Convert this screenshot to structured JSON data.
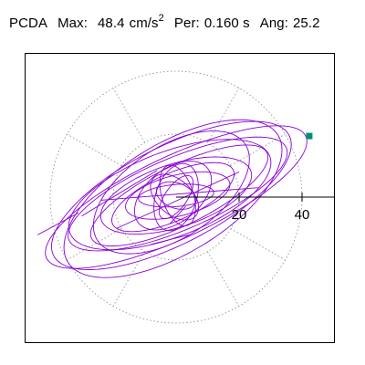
{
  "title": {
    "name": "PCDA",
    "max_label": "Max:",
    "max_value": "48.4",
    "max_unit": "cm/s",
    "max_unit_exp": "2",
    "per_label": "Per:",
    "per_value": "0.160 s",
    "ang_label": "Ang:",
    "ang_value": "25.2"
  },
  "chart_data": {
    "type": "scatter",
    "subtype": "polar orbit",
    "title": "PCDA Max: 48.4 cm/s2 Per: 0.160 s Ang: 25.2",
    "max_value": 48.4,
    "max_unit": "cm/s2",
    "period_s": 0.16,
    "angle_deg": 25.2,
    "radial_ticks": [
      20,
      40
    ],
    "tick_labels": [
      "20",
      "40"
    ],
    "radial_grid": [
      20,
      40
    ],
    "angular_grid_deg": [
      30,
      60,
      120,
      150,
      210,
      240,
      300,
      330
    ],
    "radial_limit": 48.4,
    "grid": true,
    "max_marker": {
      "x": 42.3,
      "y": 19.4
    },
    "trace": {
      "color": "#8a00d4",
      "loops": [
        {
          "a": 45.5,
          "b": 13.0,
          "rot_deg": 25.2,
          "cx": 0.0,
          "cy": 0.0,
          "phase_deg": 0
        },
        {
          "a": 42.0,
          "b": 15.5,
          "rot_deg": 27.0,
          "cx": -1.5,
          "cy": 0.5,
          "phase_deg": 0
        },
        {
          "a": 39.0,
          "b": 17.5,
          "rot_deg": 31.0,
          "cx": -1.0,
          "cy": -0.5,
          "phase_deg": 0
        },
        {
          "a": 37.5,
          "b": 11.5,
          "rot_deg": 23.0,
          "cx": 0.5,
          "cy": 1.0,
          "phase_deg": 0
        },
        {
          "a": 34.0,
          "b": 13.5,
          "rot_deg": 21.0,
          "cx": -2.0,
          "cy": 0.8,
          "phase_deg": 0
        },
        {
          "a": 31.0,
          "b": 9.5,
          "rot_deg": 26.0,
          "cx": 1.0,
          "cy": 0.5,
          "phase_deg": 0
        },
        {
          "a": 28.0,
          "b": 14.5,
          "rot_deg": 33.0,
          "cx": -1.5,
          "cy": 1.5,
          "phase_deg": 0
        },
        {
          "a": 25.0,
          "b": 10.0,
          "rot_deg": 18.0,
          "cx": 0.0,
          "cy": 0.5,
          "phase_deg": 0
        },
        {
          "a": 21.0,
          "b": 7.5,
          "rot_deg": 24.0,
          "cx": -1.0,
          "cy": 0.0,
          "phase_deg": 0
        },
        {
          "a": 17.0,
          "b": 6.5,
          "rot_deg": 14.0,
          "cx": 0.5,
          "cy": 0.5,
          "phase_deg": 0
        },
        {
          "a": 14.0,
          "b": 8.5,
          "rot_deg": 38.0,
          "cx": -1.0,
          "cy": 0.5,
          "phase_deg": 0
        },
        {
          "a": 11.0,
          "b": 6.5,
          "rot_deg": 72.0,
          "cx": 0.0,
          "cy": 0.0,
          "phase_deg": 0
        },
        {
          "a": 10.0,
          "b": 5.0,
          "rot_deg": 108.0,
          "cx": 0.5,
          "cy": 0.5,
          "phase_deg": 0
        },
        {
          "a": 9.0,
          "b": 5.5,
          "rot_deg": 138.0,
          "cx": -0.5,
          "cy": 0.0,
          "phase_deg": 0
        },
        {
          "a": 12.0,
          "b": 3.5,
          "rot_deg": 5.0,
          "cx": 0.0,
          "cy": 0.5,
          "phase_deg": 0
        },
        {
          "a": 8.0,
          "b": 3.5,
          "rot_deg": 55.0,
          "cx": 0.0,
          "cy": 0.0,
          "phase_deg": 0
        },
        {
          "a": 6.5,
          "b": 4.0,
          "rot_deg": 160.0,
          "cx": 0.0,
          "cy": 0.5,
          "phase_deg": 0
        }
      ],
      "extra_lines": [
        {
          "from": [
            -24.0,
            -1.0
          ],
          "to": [
            26.0,
            3.0
          ]
        },
        {
          "from": [
            -30.0,
            -6.0
          ],
          "to": [
            -6.0,
            8.5
          ]
        },
        {
          "from": [
            -19.0,
            -10.0
          ],
          "to": [
            20.0,
            8.0
          ]
        },
        {
          "from": [
            3.0,
            -3.0
          ],
          "to": [
            -2.0,
            -8.5
          ]
        },
        {
          "from": [
            -8.0,
            -15.0
          ],
          "to": [
            4.0,
            -12.0
          ]
        },
        {
          "from": [
            -44.0,
            -12.0
          ],
          "to": [
            -31.0,
            -5.0
          ]
        }
      ]
    },
    "colors": {
      "trace": "#8a00d4",
      "marker": "#00906e",
      "grid": "#888888",
      "axis": "#000000"
    }
  }
}
